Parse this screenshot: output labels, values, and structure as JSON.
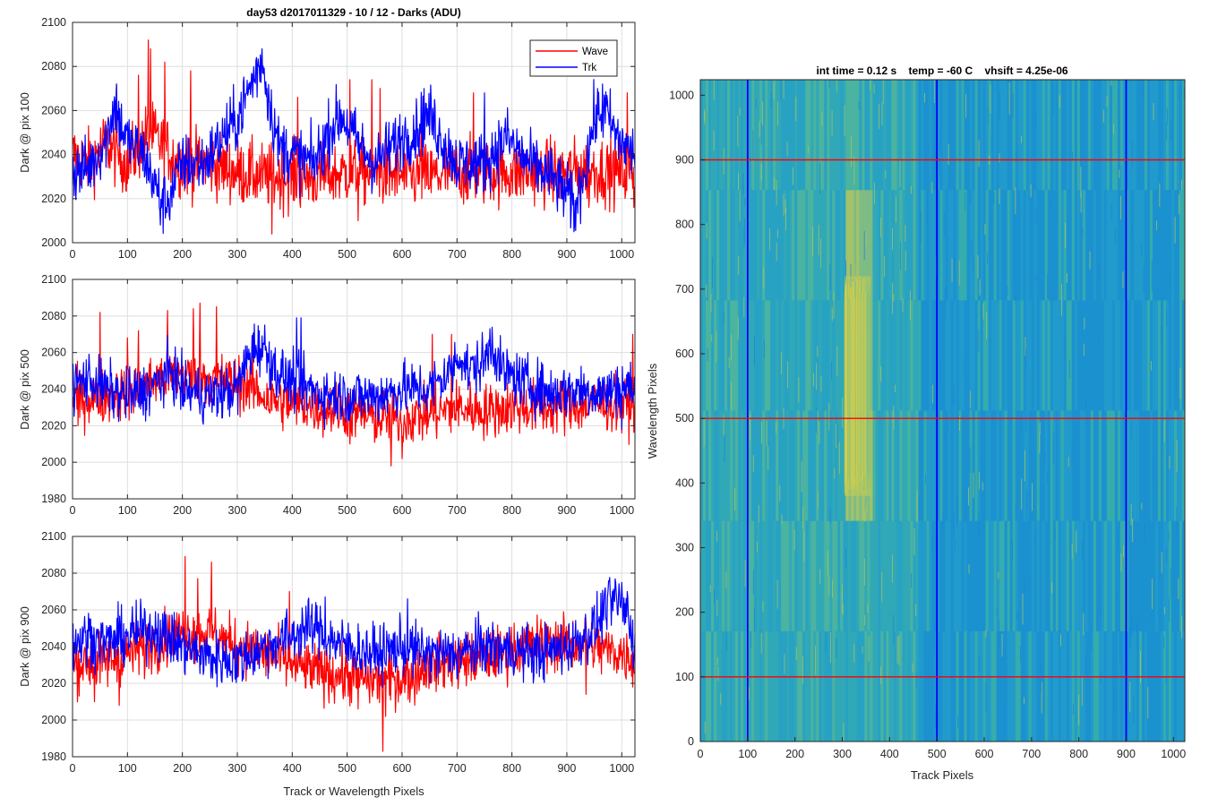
{
  "figure": {
    "left_title": "day53 d2017011329 - 10 / 12 - Darks (ADU)",
    "right_title": "int time = 0.12 s    temp = -60 C    vhsift = 4.25e-06",
    "shared_xlabel": "Track or Wavelength Pixels",
    "legend": [
      {
        "name": "Wave",
        "color": "#ff0000"
      },
      {
        "name": "Trk",
        "color": "#0000ff"
      }
    ]
  },
  "chart_data": [
    {
      "type": "line",
      "ylabel": "Dark @ pix 100",
      "xlim": [
        0,
        1024
      ],
      "ylim": [
        2000,
        2100
      ],
      "xticks": [
        0,
        100,
        200,
        300,
        400,
        500,
        600,
        700,
        800,
        900,
        1000
      ],
      "yticks": [
        2000,
        2020,
        2040,
        2060,
        2080,
        2100
      ],
      "grid": true,
      "legend_position": "top-right",
      "series": [
        {
          "name": "Wave",
          "color": "#ff0000",
          "keypoints": [
            [
              0,
              2040
            ],
            [
              30,
              2036
            ],
            [
              60,
              2045
            ],
            [
              100,
              2036
            ],
            [
              140,
              2050
            ],
            [
              200,
              2035
            ],
            [
              250,
              2036
            ],
            [
              300,
              2032
            ],
            [
              350,
              2030
            ],
            [
              400,
              2030
            ],
            [
              450,
              2030
            ],
            [
              500,
              2032
            ],
            [
              550,
              2032
            ],
            [
              600,
              2030
            ],
            [
              650,
              2030
            ],
            [
              700,
              2032
            ],
            [
              750,
              2032
            ],
            [
              800,
              2032
            ],
            [
              850,
              2032
            ],
            [
              900,
              2032
            ],
            [
              950,
              2033
            ],
            [
              1000,
              2032
            ],
            [
              1024,
              2032
            ]
          ],
          "spikes": [
            [
              138,
              2092
            ],
            [
              142,
              2088
            ],
            [
              168,
              2082
            ],
            [
              215,
              2078
            ],
            [
              120,
              2076
            ],
            [
              80,
              2072
            ],
            [
              505,
              2074
            ],
            [
              545,
              2074
            ],
            [
              560,
              2070
            ],
            [
              635,
              2066
            ],
            [
              730,
              2068
            ],
            [
              1010,
              2068
            ],
            [
              363,
              2004
            ],
            [
              520,
              2010
            ],
            [
              1022,
              2016
            ],
            [
              415,
              2016
            ],
            [
              940,
              2016
            ],
            [
              410,
              2066
            ]
          ]
        },
        {
          "name": "Trk",
          "color": "#0000ff",
          "keypoints": [
            [
              0,
              2032
            ],
            [
              30,
              2034
            ],
            [
              60,
              2046
            ],
            [
              75,
              2062
            ],
            [
              100,
              2046
            ],
            [
              130,
              2040
            ],
            [
              150,
              2026
            ],
            [
              165,
              2018
            ],
            [
              175,
              2020
            ],
            [
              200,
              2036
            ],
            [
              240,
              2036
            ],
            [
              280,
              2050
            ],
            [
              300,
              2056
            ],
            [
              330,
              2075
            ],
            [
              345,
              2082
            ],
            [
              360,
              2062
            ],
            [
              375,
              2044
            ],
            [
              400,
              2040
            ],
            [
              440,
              2036
            ],
            [
              470,
              2052
            ],
            [
              490,
              2058
            ],
            [
              520,
              2045
            ],
            [
              550,
              2036
            ],
            [
              600,
              2048
            ],
            [
              620,
              2050
            ],
            [
              650,
              2058
            ],
            [
              670,
              2048
            ],
            [
              700,
              2036
            ],
            [
              750,
              2036
            ],
            [
              790,
              2048
            ],
            [
              830,
              2036
            ],
            [
              870,
              2030
            ],
            [
              900,
              2022
            ],
            [
              915,
              2016
            ],
            [
              935,
              2036
            ],
            [
              950,
              2056
            ],
            [
              970,
              2060
            ],
            [
              990,
              2048
            ],
            [
              1024,
              2040
            ]
          ],
          "spikes": [
            [
              345,
              2088
            ],
            [
              80,
              2072
            ],
            [
              965,
              2072
            ],
            [
              750,
              2068
            ],
            [
              640,
              2070
            ],
            [
              913,
              2005
            ],
            [
              160,
              2008
            ]
          ]
        }
      ]
    },
    {
      "type": "line",
      "ylabel": "Dark @ pix 500",
      "xlim": [
        0,
        1024
      ],
      "ylim": [
        1980,
        2100
      ],
      "xticks": [
        0,
        100,
        200,
        300,
        400,
        500,
        600,
        700,
        800,
        900,
        1000
      ],
      "yticks": [
        1980,
        2000,
        2020,
        2040,
        2060,
        2080,
        2100
      ],
      "grid": true,
      "series": [
        {
          "name": "Wave",
          "color": "#ff0000",
          "keypoints": [
            [
              0,
              2034
            ],
            [
              60,
              2036
            ],
            [
              120,
              2040
            ],
            [
              160,
              2046
            ],
            [
              200,
              2048
            ],
            [
              250,
              2046
            ],
            [
              300,
              2044
            ],
            [
              330,
              2040
            ],
            [
              360,
              2034
            ],
            [
              400,
              2032
            ],
            [
              450,
              2030
            ],
            [
              500,
              2028
            ],
            [
              550,
              2024
            ],
            [
              600,
              2024
            ],
            [
              650,
              2026
            ],
            [
              700,
              2030
            ],
            [
              750,
              2028
            ],
            [
              800,
              2030
            ],
            [
              850,
              2030
            ],
            [
              900,
              2030
            ],
            [
              950,
              2032
            ],
            [
              1024,
              2032
            ]
          ],
          "spikes": [
            [
              50,
              2082
            ],
            [
              100,
              2068
            ],
            [
              173,
              2083
            ],
            [
              220,
              2084
            ],
            [
              232,
              2087
            ],
            [
              262,
              2085
            ],
            [
              120,
              2072
            ],
            [
              505,
              2010
            ],
            [
              580,
              1998
            ],
            [
              600,
              2002
            ],
            [
              655,
              2070
            ],
            [
              690,
              2070
            ],
            [
              1020,
              2070
            ],
            [
              10,
              2020
            ],
            [
              1000,
              2016
            ]
          ]
        },
        {
          "name": "Trk",
          "color": "#0000ff",
          "keypoints": [
            [
              0,
              2042
            ],
            [
              30,
              2046
            ],
            [
              60,
              2040
            ],
            [
              100,
              2036
            ],
            [
              140,
              2040
            ],
            [
              180,
              2050
            ],
            [
              200,
              2040
            ],
            [
              250,
              2036
            ],
            [
              300,
              2040
            ],
            [
              320,
              2058
            ],
            [
              335,
              2064
            ],
            [
              350,
              2062
            ],
            [
              370,
              2050
            ],
            [
              400,
              2044
            ],
            [
              450,
              2038
            ],
            [
              500,
              2036
            ],
            [
              550,
              2036
            ],
            [
              600,
              2040
            ],
            [
              650,
              2040
            ],
            [
              690,
              2050
            ],
            [
              705,
              2060
            ],
            [
              720,
              2050
            ],
            [
              750,
              2055
            ],
            [
              765,
              2066
            ],
            [
              780,
              2050
            ],
            [
              820,
              2044
            ],
            [
              870,
              2038
            ],
            [
              920,
              2040
            ],
            [
              970,
              2038
            ],
            [
              1000,
              2042
            ],
            [
              1024,
              2040
            ]
          ],
          "spikes": [
            [
              408,
              2079
            ],
            [
              416,
              2079
            ],
            [
              760,
              2073
            ],
            [
              1000,
              2018
            ]
          ]
        }
      ]
    },
    {
      "type": "line",
      "ylabel": "Dark @ pix 900",
      "xlim": [
        0,
        1024
      ],
      "ylim": [
        1980,
        2100
      ],
      "xticks": [
        0,
        100,
        200,
        300,
        400,
        500,
        600,
        700,
        800,
        900,
        1000
      ],
      "yticks": [
        1980,
        2000,
        2020,
        2040,
        2060,
        2080,
        2100
      ],
      "grid": true,
      "series": [
        {
          "name": "Wave",
          "color": "#ff0000",
          "keypoints": [
            [
              0,
              2030
            ],
            [
              60,
              2032
            ],
            [
              100,
              2036
            ],
            [
              150,
              2042
            ],
            [
              200,
              2048
            ],
            [
              250,
              2048
            ],
            [
              300,
              2040
            ],
            [
              350,
              2036
            ],
            [
              400,
              2030
            ],
            [
              450,
              2026
            ],
            [
              500,
              2024
            ],
            [
              550,
              2022
            ],
            [
              580,
              2022
            ],
            [
              620,
              2024
            ],
            [
              650,
              2030
            ],
            [
              700,
              2032
            ],
            [
              750,
              2034
            ],
            [
              800,
              2038
            ],
            [
              850,
              2042
            ],
            [
              900,
              2042
            ],
            [
              950,
              2040
            ],
            [
              1000,
              2036
            ],
            [
              1024,
              2034
            ]
          ],
          "spikes": [
            [
              205,
              2089
            ],
            [
              253,
              2086
            ],
            [
              228,
              2077
            ],
            [
              395,
              2070
            ],
            [
              565,
              1983
            ],
            [
              570,
              2002
            ],
            [
              85,
              2008
            ],
            [
              520,
              2006
            ],
            [
              40,
              2010
            ],
            [
              1020,
              2018
            ],
            [
              935,
              2014
            ]
          ]
        },
        {
          "name": "Trk",
          "color": "#0000ff",
          "keypoints": [
            [
              0,
              2042
            ],
            [
              30,
              2046
            ],
            [
              60,
              2042
            ],
            [
              100,
              2046
            ],
            [
              150,
              2050
            ],
            [
              200,
              2040
            ],
            [
              250,
              2034
            ],
            [
              300,
              2032
            ],
            [
              350,
              2040
            ],
            [
              400,
              2046
            ],
            [
              420,
              2050
            ],
            [
              450,
              2050
            ],
            [
              470,
              2044
            ],
            [
              500,
              2040
            ],
            [
              550,
              2036
            ],
            [
              600,
              2040
            ],
            [
              650,
              2036
            ],
            [
              700,
              2036
            ],
            [
              750,
              2040
            ],
            [
              800,
              2038
            ],
            [
              850,
              2036
            ],
            [
              900,
              2040
            ],
            [
              950,
              2050
            ],
            [
              970,
              2060
            ],
            [
              990,
              2066
            ],
            [
              1010,
              2058
            ],
            [
              1024,
              2040
            ]
          ],
          "spikes": [
            [
              1000,
              2075
            ],
            [
              970,
              2072
            ],
            [
              1010,
              2070
            ],
            [
              610,
              2066
            ],
            [
              460,
              2067
            ]
          ]
        }
      ]
    },
    {
      "type": "heatmap",
      "title": "int time = 0.12 s    temp = -60 C    vhsift = 4.25e-06",
      "xlabel": "Track Pixels",
      "ylabel": "Wavelength Pixels",
      "xlim": [
        0,
        1024
      ],
      "ylim": [
        0,
        1024
      ],
      "xticks": [
        0,
        100,
        200,
        300,
        400,
        500,
        600,
        700,
        800,
        900,
        1000
      ],
      "yticks": [
        0,
        100,
        200,
        300,
        400,
        500,
        600,
        700,
        800,
        900,
        1000
      ],
      "colormap": "parula",
      "bright_region": {
        "x": [
          305,
          360
        ],
        "y": [
          380,
          720
        ]
      },
      "vertical_markers": {
        "values": [
          100,
          500,
          900
        ],
        "color": "#0000ff"
      },
      "horizontal_markers": {
        "values": [
          100,
          500,
          900
        ],
        "color": "#ff0000"
      }
    }
  ]
}
